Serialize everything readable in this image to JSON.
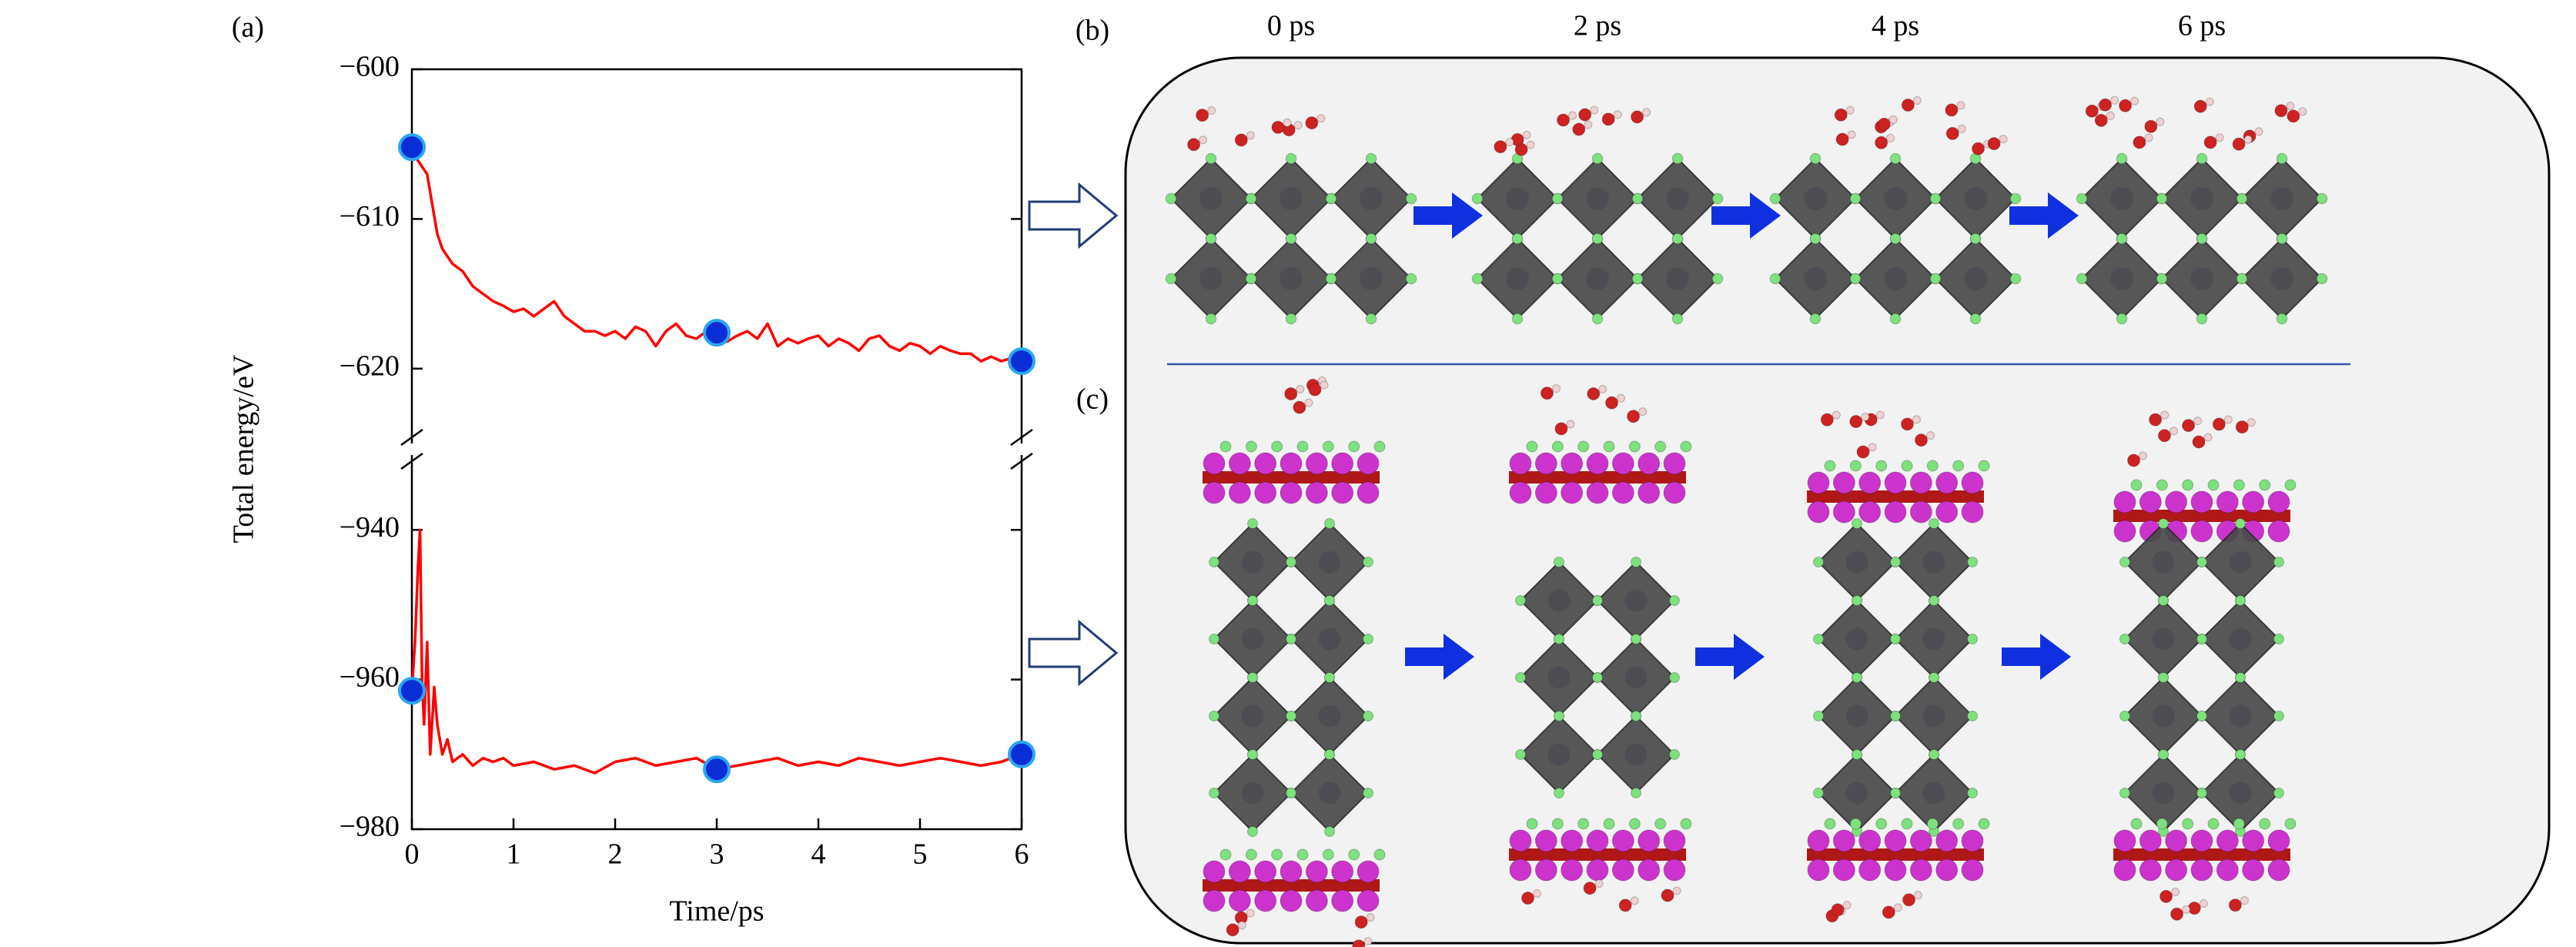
{
  "chart_data": [
    {
      "type": "line",
      "ylabel": "Total energy/eV",
      "xlim": [
        0,
        6
      ],
      "ylim": [
        -625,
        -600
      ],
      "yticks": [
        {
          "value": -600,
          "label": "−600"
        },
        {
          "value": -610,
          "label": "−610"
        },
        {
          "value": -620,
          "label": "−620"
        }
      ],
      "series": [
        {
          "color": "#ff0000",
          "x": [
            0,
            0.05,
            0.1,
            0.15,
            0.2,
            0.25,
            0.3,
            0.4,
            0.5,
            0.6,
            0.7,
            0.8,
            0.9,
            1.0,
            1.1,
            1.2,
            1.3,
            1.4,
            1.5,
            1.6,
            1.7,
            1.8,
            1.9,
            2.0,
            2.1,
            2.2,
            2.3,
            2.4,
            2.5,
            2.6,
            2.7,
            2.8,
            2.9,
            3.0,
            3.1,
            3.2,
            3.3,
            3.4,
            3.5,
            3.6,
            3.7,
            3.8,
            3.9,
            4.0,
            4.1,
            4.2,
            4.3,
            4.4,
            4.5,
            4.6,
            4.7,
            4.8,
            4.9,
            5.0,
            5.1,
            5.2,
            5.3,
            5.4,
            5.5,
            5.6,
            5.7,
            5.8,
            5.9,
            6.0
          ],
          "values": [
            -605.2,
            -606,
            -606.5,
            -607,
            -609,
            -611,
            -612,
            -613,
            -613.5,
            -614.5,
            -615,
            -615.5,
            -615.8,
            -616.2,
            -616,
            -616.5,
            -616,
            -615.5,
            -616.5,
            -617,
            -617.5,
            -617.5,
            -617.8,
            -617.5,
            -618,
            -617.2,
            -617.5,
            -618.5,
            -617.5,
            -617,
            -617.8,
            -618,
            -617.5,
            -617.6,
            -618.2,
            -617.8,
            -617.5,
            -618,
            -617,
            -618.5,
            -618,
            -618.3,
            -618,
            -617.8,
            -618.5,
            -618,
            -618.3,
            -618.8,
            -618,
            -617.8,
            -618.5,
            -618.8,
            -618.3,
            -618.5,
            -619,
            -618.5,
            -618.8,
            -619,
            -619,
            -619.5,
            -619.2,
            -619.5,
            -619.3,
            -619.5
          ]
        },
        {
          "color": "#0a2ed6",
          "marker": true,
          "x": [
            0,
            3,
            6
          ],
          "values": [
            -605.2,
            -617.6,
            -619.5
          ]
        }
      ]
    },
    {
      "type": "line",
      "xlabel": "Time/ps",
      "xlim": [
        0,
        6
      ],
      "xticks": [
        0,
        1,
        2,
        3,
        4,
        5,
        6
      ],
      "ylim": [
        -980,
        -930
      ],
      "yticks": [
        {
          "value": -940,
          "label": "−940"
        },
        {
          "value": -960,
          "label": "−960"
        },
        {
          "value": -980,
          "label": "−980"
        }
      ],
      "series": [
        {
          "color": "#ff0000",
          "x": [
            0,
            0.03,
            0.06,
            0.08,
            0.1,
            0.12,
            0.15,
            0.18,
            0.22,
            0.25,
            0.3,
            0.35,
            0.4,
            0.5,
            0.6,
            0.7,
            0.8,
            0.9,
            1.0,
            1.2,
            1.4,
            1.6,
            1.8,
            2.0,
            2.2,
            2.4,
            2.6,
            2.8,
            3.0,
            3.2,
            3.4,
            3.6,
            3.8,
            4.0,
            4.2,
            4.4,
            4.6,
            4.8,
            5.0,
            5.2,
            5.4,
            5.6,
            5.8,
            6.0
          ],
          "values": [
            -961.5,
            -955,
            -945,
            -940,
            -960,
            -966,
            -955,
            -970,
            -961,
            -966,
            -970,
            -968,
            -971,
            -970,
            -971.5,
            -970.5,
            -971,
            -970.5,
            -971.5,
            -971,
            -972,
            -971.5,
            -972.5,
            -971,
            -970.5,
            -971.5,
            -971,
            -970.5,
            -972,
            -971.5,
            -971,
            -970.5,
            -971.5,
            -971,
            -971.5,
            -970.5,
            -971,
            -971.5,
            -971,
            -970.5,
            -971,
            -971.5,
            -971,
            -970
          ]
        },
        {
          "color": "#0a2ed6",
          "marker": true,
          "x": [
            0,
            3,
            6
          ],
          "values": [
            -961.5,
            -972,
            -970
          ]
        }
      ]
    }
  ],
  "figure": {
    "panel_labels": [
      "(a)",
      "(b)",
      "(c)"
    ],
    "times": [
      "0 ps",
      "2 ps",
      "4 ps",
      "6 ps"
    ]
  }
}
